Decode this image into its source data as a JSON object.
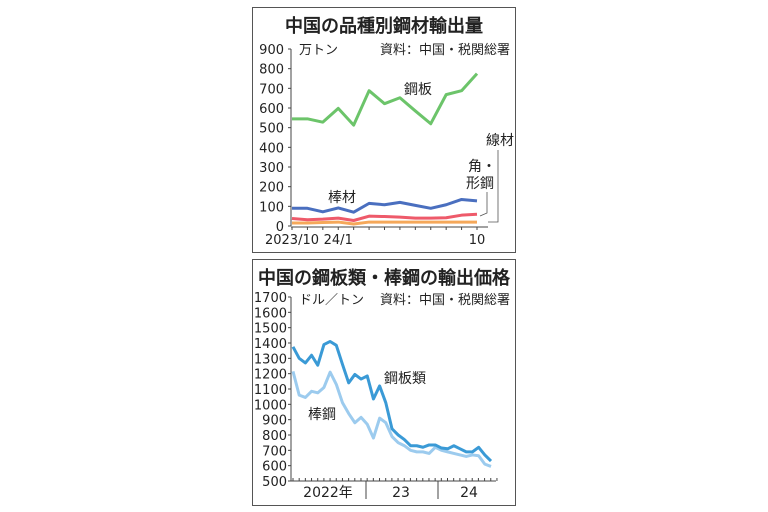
{
  "chart_data": [
    {
      "type": "line",
      "title": "中国の品種別鋼材輸出量",
      "unit_label": "万トン",
      "source": "資料：中国・税関総署",
      "ylim": [
        0,
        900
      ],
      "yticks": [
        "900",
        "800",
        "700",
        "600",
        "500",
        "400",
        "300",
        "200",
        "100",
        "0"
      ],
      "x": [
        "2023/10",
        "11",
        "12",
        "24/1",
        "2",
        "3",
        "4",
        "5",
        "6",
        "7",
        "8",
        "9",
        "10"
      ],
      "xtick_labels": [
        {
          "label": "2023/10",
          "index": 0
        },
        {
          "label": "24/1",
          "index": 3
        },
        {
          "label": "10",
          "index": 12
        }
      ],
      "series": [
        {
          "name": "鋼板",
          "color": "#6cc46a",
          "values": [
            545,
            545,
            528,
            598,
            513,
            688,
            622,
            652,
            585,
            520,
            668,
            688,
            775
          ]
        },
        {
          "name": "棒材",
          "color": "#4a6fbf",
          "values": [
            90,
            90,
            72,
            92,
            70,
            115,
            108,
            120,
            105,
            90,
            108,
            135,
            128
          ]
        },
        {
          "name": "角・形鋼",
          "color": "#ee5a6a",
          "values": [
            38,
            32,
            35,
            40,
            28,
            50,
            48,
            45,
            40,
            40,
            42,
            55,
            60
          ]
        },
        {
          "name": "線材",
          "color": "#f5a85a",
          "values": [
            15,
            15,
            18,
            20,
            10,
            20,
            20,
            20,
            20,
            20,
            20,
            20,
            20
          ]
        }
      ],
      "labels": {
        "steel_plate": "鋼板",
        "bar": "棒材",
        "section_1": "角・",
        "section_2": "形鋼",
        "wire": "線材"
      }
    },
    {
      "type": "line",
      "title": "中国の鋼板類・棒鋼の輸出価格",
      "unit_label": "ドル／トン",
      "source": "資料：中国・税関総署",
      "ylim": [
        500,
        1700
      ],
      "yticks": [
        "1700",
        "1600",
        "1500",
        "1400",
        "1300",
        "1200",
        "1100",
        "1000",
        "900",
        "800",
        "700",
        "600",
        "500"
      ],
      "xgroups": [
        "2022年",
        "23",
        "24"
      ],
      "series": [
        {
          "name": "鋼板類",
          "color": "#3a9ad6",
          "values": [
            1375,
            1300,
            1270,
            1320,
            1255,
            1390,
            1410,
            1385,
            1260,
            1140,
            1195,
            1165,
            1185,
            1035,
            1120,
            1010,
            840,
            800,
            770,
            730,
            730,
            720,
            735,
            735,
            715,
            710,
            730,
            710,
            690,
            690,
            720,
            670,
            630
          ]
        },
        {
          "name": "棒鋼",
          "color": "#9ccbee",
          "values": [
            1215,
            1060,
            1045,
            1085,
            1075,
            1110,
            1210,
            1130,
            1010,
            940,
            880,
            915,
            870,
            780,
            910,
            880,
            790,
            750,
            730,
            700,
            690,
            690,
            680,
            720,
            700,
            690,
            680,
            670,
            660,
            670,
            665,
            610,
            595
          ]
        }
      ]
    }
  ]
}
